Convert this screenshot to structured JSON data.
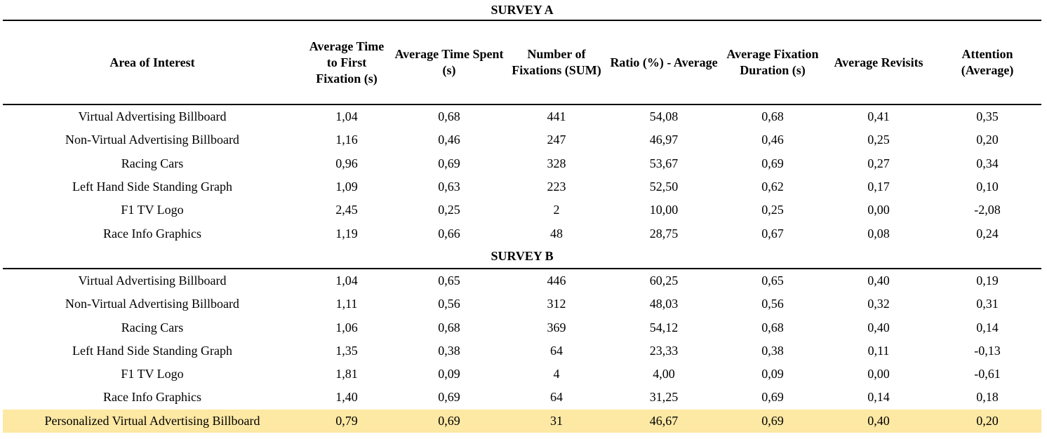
{
  "header": [
    "Area of Interest",
    "Average Time to First Fixation (s)",
    "Average Time Spent (s)",
    "Number of Fixations (SUM)",
    "Ratio (%) - Average",
    "Average Fixation Duration (s)",
    "Average Revisits",
    "Attention (Average)"
  ],
  "survey_a": {
    "title": "SURVEY A",
    "rows": [
      [
        "Virtual Advertising Billboard",
        "1,04",
        "0,68",
        "441",
        "54,08",
        "0,68",
        "0,41",
        "0,35"
      ],
      [
        "Non-Virtual Advertising Billboard",
        "1,16",
        "0,46",
        "247",
        "46,97",
        "0,46",
        "0,25",
        "0,20"
      ],
      [
        "Racing Cars",
        "0,96",
        "0,69",
        "328",
        "53,67",
        "0,69",
        "0,27",
        "0,34"
      ],
      [
        "Left Hand Side Standing Graph",
        "1,09",
        "0,63",
        "223",
        "52,50",
        "0,62",
        "0,17",
        "0,10"
      ],
      [
        "F1 TV Logo",
        "2,45",
        "0,25",
        "2",
        "10,00",
        "0,25",
        "0,00",
        "-2,08"
      ],
      [
        "Race Info Graphics",
        "1,19",
        "0,66",
        "48",
        "28,75",
        "0,67",
        "0,08",
        "0,24"
      ]
    ]
  },
  "survey_b": {
    "title": "SURVEY B",
    "rows": [
      [
        "Virtual Advertising Billboard",
        "1,04",
        "0,65",
        "446",
        "60,25",
        "0,65",
        "0,40",
        "0,19"
      ],
      [
        "Non-Virtual Advertising Billboard",
        "1,11",
        "0,56",
        "312",
        "48,03",
        "0,56",
        "0,32",
        "0,31"
      ],
      [
        "Racing Cars",
        "1,06",
        "0,68",
        "369",
        "54,12",
        "0,68",
        "0,40",
        "0,14"
      ],
      [
        "Left Hand Side Standing Graph",
        "1,35",
        "0,38",
        "64",
        "23,33",
        "0,38",
        "0,11",
        "-0,13"
      ],
      [
        "F1 TV Logo",
        "1,81",
        "0,09",
        "4",
        "4,00",
        "0,09",
        "0,00",
        "-0,61"
      ],
      [
        "Race Info Graphics",
        "1,40",
        "0,69",
        "64",
        "31,25",
        "0,69",
        "0,14",
        "0,18"
      ]
    ],
    "highlighted_row": [
      "Personalized Virtual Advertising Billboard",
      "0,79",
      "0,69",
      "31",
      "46,67",
      "0,69",
      "0,40",
      "0,20"
    ],
    "highlight_color": "#fde8a4"
  }
}
